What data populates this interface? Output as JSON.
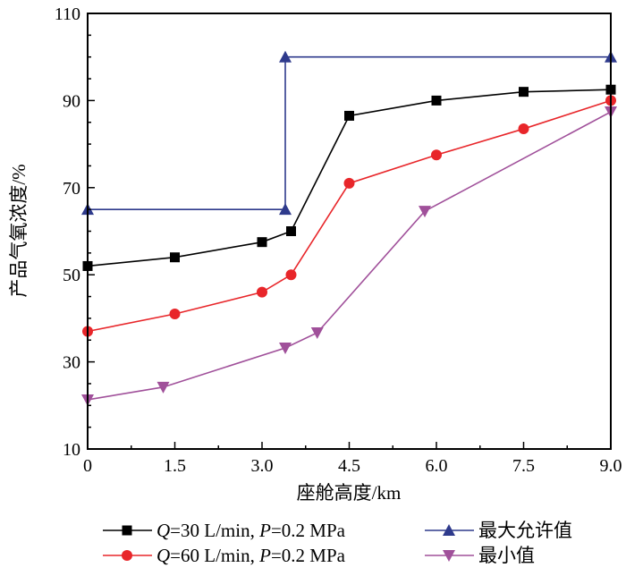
{
  "chart_data": {
    "type": "line",
    "xlabel": "座舱高度/km",
    "ylabel": "产品气氧浓度/%",
    "xlim": [
      0,
      9
    ],
    "ylim": [
      10,
      110
    ],
    "xticks": [
      "0",
      "1.5",
      "3.0",
      "4.5",
      "6.0",
      "7.5",
      "9.0"
    ],
    "xtick_values": [
      0,
      1.5,
      3.0,
      4.5,
      6.0,
      7.5,
      9.0
    ],
    "yticks": [
      "10",
      "30",
      "50",
      "70",
      "90",
      "110"
    ],
    "ytick_values": [
      10,
      30,
      50,
      70,
      90,
      110
    ],
    "grid": false,
    "legend_position": "bottom",
    "series": [
      {
        "name": "Q=30 L/min, P=0.2 MPa",
        "legend_q": "Q",
        "legend_rest1": "=30 L/min, ",
        "legend_p": "P",
        "legend_rest2": "=0.2 MPa",
        "color": "#000000",
        "marker": "square",
        "x": [
          0,
          1.5,
          3.0,
          3.5,
          4.5,
          6.0,
          7.5,
          9.0
        ],
        "y": [
          52,
          54,
          57.5,
          60,
          86.5,
          90,
          92,
          92.5
        ]
      },
      {
        "name": "Q=60 L/min, P=0.2 MPa",
        "legend_q": "Q",
        "legend_rest1": "=60 L/min, ",
        "legend_p": "P",
        "legend_rest2": "=0.2 MPa",
        "color": "#e8262a",
        "marker": "circle",
        "x": [
          0,
          1.5,
          3.0,
          3.5,
          4.5,
          6.0,
          7.5,
          9.0
        ],
        "y": [
          37,
          41,
          46,
          50,
          71,
          77.5,
          83.5,
          90
        ]
      },
      {
        "name": "最大允许值",
        "color": "#2e3a8c",
        "marker": "triangle-up",
        "x": [
          0,
          3.4,
          3.4,
          9.0
        ],
        "y": [
          65,
          65,
          100,
          100
        ]
      },
      {
        "name": "最小值",
        "color": "#a0509a",
        "marker": "triangle-down",
        "x": [
          0,
          1.3,
          3.4,
          3.95,
          5.8,
          9.0
        ],
        "y": [
          21.3,
          24.2,
          33.2,
          36.7,
          64.6,
          87.4
        ]
      }
    ]
  }
}
